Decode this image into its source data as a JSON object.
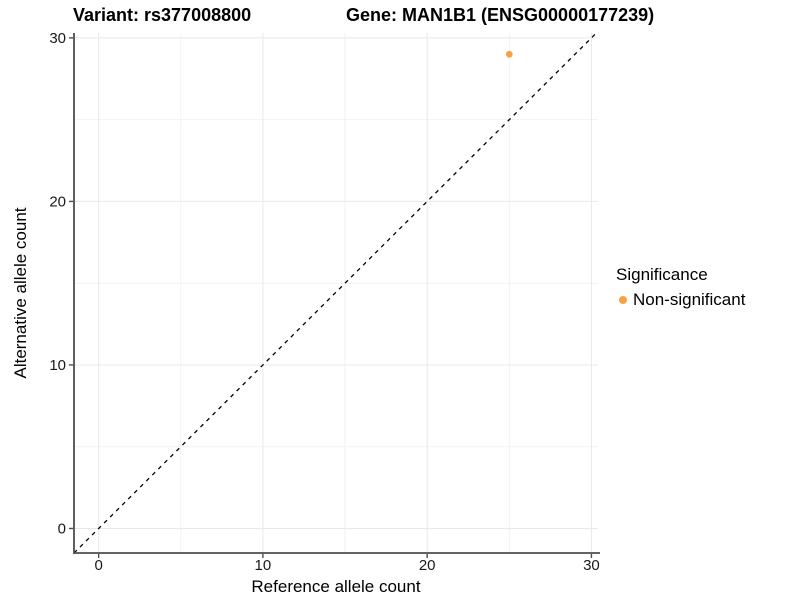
{
  "figure": {
    "background": "#FFFFFF"
  },
  "chart_data": {
    "type": "scatter",
    "title_left": "Variant: rs377008800",
    "title_right": "Gene: MAN1B1 (ENSG00000177239)",
    "xlabel": "Reference allele count",
    "ylabel": "Alternative allele count",
    "xlim": [
      -1.5,
      30.4
    ],
    "ylim": [
      -1.5,
      30.3
    ],
    "x_ticks": [
      0,
      10,
      20,
      30
    ],
    "y_ticks": [
      0,
      10,
      20,
      30
    ],
    "x_minor_ticks": [
      5,
      15,
      25
    ],
    "y_minor_ticks": [
      5,
      15,
      25
    ],
    "grid": true,
    "legend_position": "right",
    "series": [
      {
        "name": "Non-significant",
        "color": "#F9A242",
        "points": [
          {
            "x": 25,
            "y": 29
          }
        ]
      }
    ],
    "identity_line": {
      "style": "dashed",
      "slope": 1,
      "intercept": 0,
      "color": "#000000"
    },
    "legend": {
      "title": "Significance",
      "items": [
        {
          "label": "Non-significant",
          "color": "#F9A242"
        }
      ]
    },
    "colors": {
      "panel_background": "#FFFFFF",
      "grid_major": "#E8E8E8",
      "grid_minor": "#F2F2F2",
      "axis_line": "#4D4D4D",
      "tick_label": "#1A1A1A",
      "point": "#F9A242"
    }
  }
}
